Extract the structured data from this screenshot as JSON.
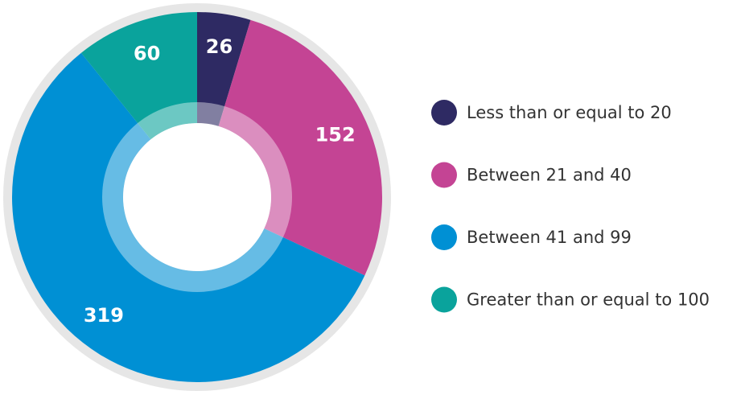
{
  "chart_data": {
    "type": "donut",
    "categories": [
      "Less than or equal to 20",
      "Between 21 and 40",
      "Between 41 and 99",
      "Greater than or equal to 100"
    ],
    "values": [
      26,
      152,
      319,
      60
    ],
    "colors": [
      "#2e2a63",
      "#c44494",
      "#0090d4",
      "#0aa39c"
    ]
  }
}
